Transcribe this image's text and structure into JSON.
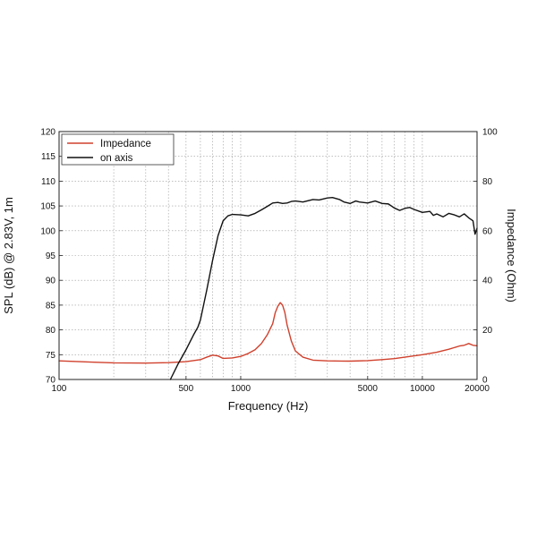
{
  "chart_data": {
    "type": "line",
    "title": "",
    "xlabel": "Frequency (Hz)",
    "ylabel_left": "SPL (dB) @ 2.83V, 1m",
    "ylabel_right": "Impedance (Ohm)",
    "x_scale": "log",
    "xlim": [
      100,
      20000
    ],
    "ylim_left": [
      70,
      120
    ],
    "ylim_right": [
      0,
      100
    ],
    "x_tick_labels": [
      "100",
      "500",
      "1000",
      "5000",
      "10000",
      "20000"
    ],
    "y_left_tick_labels": [
      "70",
      "75",
      "80",
      "85",
      "90",
      "95",
      "100",
      "105",
      "110",
      "115",
      "120"
    ],
    "y_right_tick_labels": [
      "0",
      "20",
      "40",
      "60",
      "80",
      "100"
    ],
    "grid": true,
    "legend_position": "top-left",
    "series": [
      {
        "name": "Impedance",
        "axis": "right",
        "color": "#d0412d",
        "x": [
          100,
          150,
          200,
          300,
          400,
          500,
          600,
          650,
          700,
          750,
          800,
          850,
          900,
          1000,
          1100,
          1200,
          1300,
          1400,
          1500,
          1550,
          1600,
          1650,
          1700,
          1750,
          1800,
          1900,
          2000,
          2200,
          2500,
          3000,
          4000,
          5000,
          6000,
          7000,
          8000,
          10000,
          12000,
          14000,
          16000,
          17000,
          18000,
          19000,
          20000
        ],
        "y": [
          7.5,
          7.0,
          6.7,
          6.6,
          6.8,
          7.2,
          8.0,
          9.0,
          9.8,
          9.5,
          8.5,
          8.6,
          8.7,
          9.3,
          10.5,
          12.0,
          14.5,
          18.0,
          22.5,
          27.0,
          29.5,
          31.0,
          30.0,
          27.0,
          22.0,
          15.5,
          11.5,
          9.0,
          7.8,
          7.5,
          7.4,
          7.6,
          8.0,
          8.4,
          9.0,
          10.0,
          11.0,
          12.2,
          13.5,
          13.8,
          14.5,
          13.8,
          13.6
        ]
      },
      {
        "name": "on axis",
        "axis": "left",
        "color": "#111111",
        "x": [
          410,
          450,
          500,
          550,
          580,
          600,
          650,
          700,
          750,
          800,
          850,
          900,
          1000,
          1100,
          1200,
          1300,
          1400,
          1500,
          1600,
          1700,
          1800,
          1900,
          2000,
          2200,
          2500,
          2700,
          3000,
          3200,
          3500,
          3700,
          4000,
          4300,
          4500,
          5000,
          5500,
          6000,
          6500,
          7000,
          7500,
          8000,
          8500,
          9000,
          10000,
          11000,
          11500,
          12000,
          13000,
          14000,
          15000,
          16000,
          17000,
          18000,
          19000,
          19500,
          20000
        ],
        "y": [
          70,
          73,
          76,
          79,
          80.5,
          82,
          88,
          94,
          99,
          102,
          103,
          103.3,
          103.2,
          103,
          103.5,
          104.2,
          104.9,
          105.6,
          105.7,
          105.5,
          105.6,
          105.9,
          106.0,
          105.8,
          106.3,
          106.2,
          106.6,
          106.7,
          106.3,
          105.8,
          105.5,
          106.0,
          105.8,
          105.6,
          106.0,
          105.5,
          105.4,
          104.6,
          104.1,
          104.5,
          104.7,
          104.3,
          103.7,
          103.9,
          103.1,
          103.4,
          102.8,
          103.5,
          103.2,
          102.8,
          103.4,
          102.6,
          102.0,
          99.3,
          100.5
        ]
      }
    ]
  },
  "legend": {
    "items": [
      {
        "label": "Impedance",
        "color": "#d0412d"
      },
      {
        "label": "on axis",
        "color": "#111111"
      }
    ]
  }
}
